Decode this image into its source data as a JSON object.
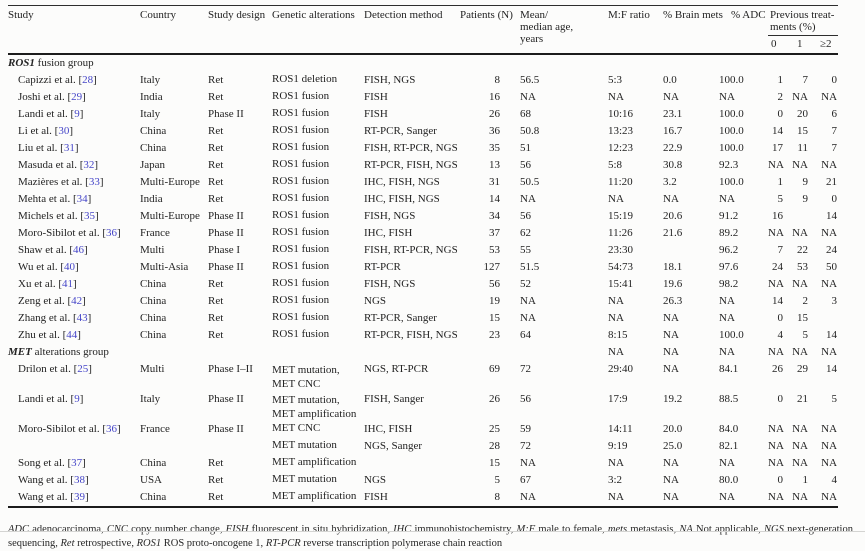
{
  "colors": {
    "background": "#fcfcfb",
    "text": "#232323",
    "citation_ref": "#4646c8",
    "rule_thick": "#1c1c1c",
    "rule_thin": "#2e2e2e"
  },
  "table": {
    "headers": {
      "study": "Study",
      "country": "Country",
      "design": "Study design",
      "genetic": "Genetic alterations",
      "detection": "Detection method",
      "patients": "Patients (N)",
      "age": "Mean/\nmedian age,\nyears",
      "mf": "M:F ratio",
      "brain": "% Brain mets",
      "adc": "% ADC",
      "prev": "Previous treat-\nments (%)",
      "prev0": "0",
      "prev1": "1",
      "prev2": "≥2"
    },
    "rows": [
      {
        "type": "group",
        "em": "ROS1",
        "label": " fusion group"
      },
      {
        "study": "Capizzi et al.",
        "ref": "28",
        "country": "Italy",
        "design": "Ret",
        "genetic": [
          "ROS1 deletion"
        ],
        "detection": "FISH, NGS",
        "patients": "8",
        "age": "56.5",
        "mf": "5:3",
        "brain": "0.0",
        "adc": "100.0",
        "p0": "1",
        "p1": "7",
        "p2": "0"
      },
      {
        "study": "Joshi et al.",
        "ref": "29",
        "country": "India",
        "design": "Ret",
        "genetic": [
          "ROS1 fusion"
        ],
        "detection": "FISH",
        "patients": "16",
        "age": "NA",
        "mf": "NA",
        "brain": "NA",
        "adc": "NA",
        "p0": "2",
        "p1": "NA",
        "p2": "NA"
      },
      {
        "study": "Landi et al.",
        "ref": "9",
        "country": "Italy",
        "design": "Phase II",
        "genetic": [
          "ROS1 fusion"
        ],
        "detection": "FISH",
        "patients": "26",
        "age": "68",
        "mf": "10:16",
        "brain": "23.1",
        "adc": "100.0",
        "p0": "0",
        "p1": "20",
        "p2": "6"
      },
      {
        "study": "Li et al.",
        "ref": "30",
        "country": "China",
        "design": "Ret",
        "genetic": [
          "ROS1 fusion"
        ],
        "detection": "RT-PCR, Sanger",
        "patients": "36",
        "age": "50.8",
        "mf": "13:23",
        "brain": "16.7",
        "adc": "100.0",
        "p0": "14",
        "p1": "15",
        "p2": "7"
      },
      {
        "study": "Liu et al.",
        "ref": "31",
        "country": "China",
        "design": "Ret",
        "genetic": [
          "ROS1 fusion"
        ],
        "detection": "FISH, RT-PCR, NGS",
        "patients": "35",
        "age": "51",
        "mf": "12:23",
        "brain": "22.9",
        "adc": "100.0",
        "p0": "17",
        "p1": "11",
        "p2": "7"
      },
      {
        "study": "Masuda et al.",
        "ref": "32",
        "country": "Japan",
        "design": "Ret",
        "genetic": [
          "ROS1 fusion"
        ],
        "detection": "RT-PCR, FISH, NGS",
        "patients": "13",
        "age": "56",
        "mf": "5:8",
        "brain": "30.8",
        "adc": "92.3",
        "p0": "NA",
        "p1": "NA",
        "p2": "NA"
      },
      {
        "study": "Mazières et al.",
        "ref": "33",
        "country": "Multi-Europe",
        "design": "Ret",
        "genetic": [
          "ROS1 fusion"
        ],
        "detection": "IHC, FISH, NGS",
        "patients": "31",
        "age": "50.5",
        "mf": "11:20",
        "brain": "3.2",
        "adc": "100.0",
        "p0": "1",
        "p1": "9",
        "p2": "21"
      },
      {
        "study": "Mehta et al.",
        "ref": "34",
        "country": "India",
        "design": "Ret",
        "genetic": [
          "ROS1 fusion"
        ],
        "detection": "IHC, FISH, NGS",
        "patients": "14",
        "age": "NA",
        "mf": "NA",
        "brain": "NA",
        "adc": "NA",
        "p0": "5",
        "p1": "9",
        "p2": "0"
      },
      {
        "study": "Michels et al.",
        "ref": "35",
        "country": "Multi-Europe",
        "design": "Phase II",
        "genetic": [
          "ROS1 fusion"
        ],
        "detection": "FISH, NGS",
        "patients": "34",
        "age": "56",
        "mf": "15:19",
        "brain": "20.6",
        "adc": "91.2",
        "p0": "16",
        "p1": "",
        "p2": "14"
      },
      {
        "study": "Moro-Sibilot et al.",
        "ref": "36",
        "country": "France",
        "design": "Phase II",
        "genetic": [
          "ROS1 fusion"
        ],
        "detection": "IHC, FISH",
        "patients": "37",
        "age": "62",
        "mf": "11:26",
        "brain": "21.6",
        "adc": "89.2",
        "p0": "NA",
        "p1": "NA",
        "p2": "NA"
      },
      {
        "study": "Shaw et al.",
        "ref": "46",
        "country": "Multi",
        "design": "Phase I",
        "genetic": [
          "ROS1 fusion"
        ],
        "detection": "FISH, RT-PCR, NGS",
        "patients": "53",
        "age": "55",
        "mf": "23:30",
        "brain": "",
        "adc": "96.2",
        "p0": "7",
        "p1": "22",
        "p2": "24"
      },
      {
        "study": "Wu et al.",
        "ref": "40",
        "country": "Multi-Asia",
        "design": "Phase II",
        "genetic": [
          "ROS1 fusion"
        ],
        "detection": "RT-PCR",
        "patients": "127",
        "age": "51.5",
        "mf": "54:73",
        "brain": "18.1",
        "adc": "97.6",
        "p0": "24",
        "p1": "53",
        "p2": "50"
      },
      {
        "study": "Xu et al.",
        "ref": "41",
        "country": "China",
        "design": "Ret",
        "genetic": [
          "ROS1 fusion"
        ],
        "detection": "FISH, NGS",
        "patients": "56",
        "age": "52",
        "mf": "15:41",
        "brain": "19.6",
        "adc": "98.2",
        "p0": "NA",
        "p1": "NA",
        "p2": "NA"
      },
      {
        "study": "Zeng et al.",
        "ref": "42",
        "country": "China",
        "design": "Ret",
        "genetic": [
          "ROS1 fusion"
        ],
        "detection": "NGS",
        "patients": "19",
        "age": "NA",
        "mf": "NA",
        "brain": "26.3",
        "adc": "NA",
        "p0": "14",
        "p1": "2",
        "p2": "3"
      },
      {
        "study": "Zhang et al.",
        "ref": "43",
        "country": "China",
        "design": "Ret",
        "genetic": [
          "ROS1 fusion"
        ],
        "detection": "RT-PCR, Sanger",
        "patients": "15",
        "age": "NA",
        "mf": "NA",
        "brain": "NA",
        "adc": "NA",
        "p0": "0",
        "p1": "15",
        "p2": ""
      },
      {
        "study": "Zhu et al.",
        "ref": "44",
        "country": "China",
        "design": "Ret",
        "genetic": [
          "ROS1 fusion"
        ],
        "detection": "RT-PCR, FISH, NGS",
        "patients": "23",
        "age": "64",
        "mf": "8:15",
        "brain": "NA",
        "adc": "100.0",
        "p0": "4",
        "p1": "5",
        "p2": "14"
      },
      {
        "type": "group",
        "em": "MET",
        "label": " alterations group",
        "mf": "NA",
        "brain": "NA",
        "adc": "NA",
        "p0": "NA",
        "p1": "NA",
        "p2": "NA"
      },
      {
        "study": "Drilon et al.",
        "ref": "25",
        "country": "Multi",
        "design": "Phase I–II",
        "genetic": [
          "MET mutation,",
          "MET CNC"
        ],
        "detection": "NGS, RT-PCR",
        "patients": "69",
        "age": "72",
        "mf": "29:40",
        "brain": "NA",
        "adc": "84.1",
        "p0": "26",
        "p1": "29",
        "p2": "14"
      },
      {
        "study": "Landi et al.",
        "ref": "9",
        "country": "Italy",
        "design": "Phase II",
        "genetic": [
          "MET mutation,",
          "MET amplification"
        ],
        "detection": "FISH, Sanger",
        "patients": "26",
        "age": "56",
        "mf": "17:9",
        "brain": "19.2",
        "adc": "88.5",
        "p0": "0",
        "p1": "21",
        "p2": "5"
      },
      {
        "study": "Moro-Sibilot et al.",
        "ref": "36",
        "country": "France",
        "design": "Phase II",
        "genetic": [
          "MET CNC"
        ],
        "detection": "IHC, FISH",
        "patients": "25",
        "age": "59",
        "mf": "14:11",
        "brain": "20.0",
        "adc": "84.0",
        "p0": "NA",
        "p1": "NA",
        "p2": "NA"
      },
      {
        "study": "",
        "country": "",
        "design": "",
        "genetic": [
          "MET mutation"
        ],
        "detection": "NGS, Sanger",
        "patients": "28",
        "age": "72",
        "mf": "9:19",
        "brain": "25.0",
        "adc": "82.1",
        "p0": "NA",
        "p1": "NA",
        "p2": "NA"
      },
      {
        "study": "Song et al.",
        "ref": "37",
        "country": "China",
        "design": "Ret",
        "genetic": [
          "MET amplification"
        ],
        "detection": "",
        "patients": "15",
        "age": "NA",
        "mf": "NA",
        "brain": "NA",
        "adc": "NA",
        "p0": "NA",
        "p1": "NA",
        "p2": "NA"
      },
      {
        "study": "Wang et al.",
        "ref": "38",
        "country": "USA",
        "design": "Ret",
        "genetic": [
          "MET mutation"
        ],
        "detection": "NGS",
        "patients": "5",
        "age": "67",
        "mf": "3:2",
        "brain": "NA",
        "adc": "80.0",
        "p0": "0",
        "p1": "1",
        "p2": "4"
      },
      {
        "study": "Wang et al.",
        "ref": "39",
        "country": "China",
        "design": "Ret",
        "genetic": [
          "MET amplification"
        ],
        "detection": "FISH",
        "patients": "8",
        "age": "NA",
        "mf": "NA",
        "brain": "NA",
        "adc": "NA",
        "p0": "NA",
        "p1": "NA",
        "p2": "NA"
      }
    ]
  },
  "footnote": {
    "parts": [
      {
        "term": "ADC",
        "def": "adenocarcinoma"
      },
      {
        "term": "CNC",
        "def": "copy number change"
      },
      {
        "term": "FISH",
        "def": "fluorescent in situ hybridization"
      },
      {
        "term": "IHC",
        "def": "immunohistochemistry"
      },
      {
        "term": "M:F",
        "def": "male to female"
      },
      {
        "term": "mets",
        "def": "metastasis"
      },
      {
        "term": "NA",
        "def": "Not applicable"
      },
      {
        "term": "NGS",
        "def": "next-generation sequencing"
      },
      {
        "term": "Ret",
        "def": "retrospective"
      },
      {
        "term": "ROS1",
        "def": "ROS proto-oncogene 1"
      },
      {
        "term": "RT-PCR",
        "def": "reverse transcription polymerase chain reaction"
      }
    ]
  }
}
